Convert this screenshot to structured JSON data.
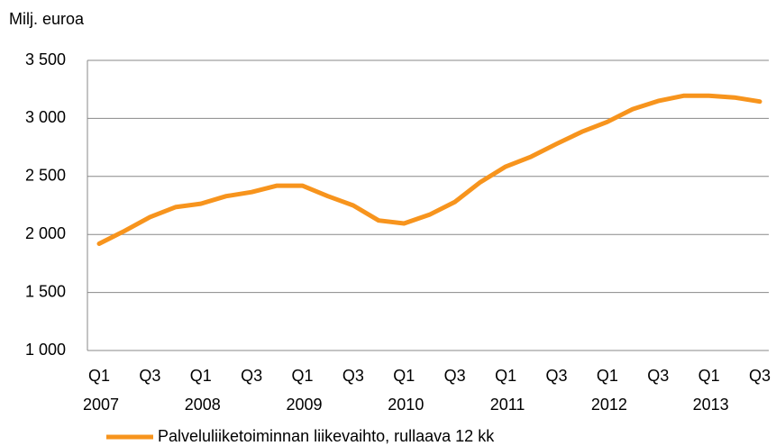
{
  "chart_data": {
    "type": "line",
    "y_axis_label": "Milj. euroa",
    "categories": [
      "Q1",
      null,
      "Q3",
      null,
      "Q1",
      null,
      "Q3",
      null,
      "Q1",
      null,
      "Q3",
      null,
      "Q1",
      null,
      "Q3",
      null,
      "Q1",
      null,
      "Q3",
      null,
      "Q1",
      null,
      "Q3",
      null,
      "Q1",
      null,
      "Q3"
    ],
    "years": [
      "2007",
      null,
      null,
      null,
      "2008",
      null,
      null,
      null,
      "2009",
      null,
      null,
      null,
      "2010",
      null,
      null,
      null,
      "2011",
      null,
      null,
      null,
      "2012",
      null,
      null,
      null,
      "2013",
      null,
      null
    ],
    "series": [
      {
        "name": "Palveluliiketoiminnan liikevaihto, rullaava 12 kk",
        "color": "#f7941d",
        "values": [
          1920,
          2030,
          2150,
          2235,
          2265,
          2330,
          2365,
          2420,
          2420,
          2330,
          2250,
          2120,
          2095,
          2170,
          2280,
          2450,
          2585,
          2670,
          2780,
          2885,
          2970,
          3080,
          3150,
          3195,
          3195,
          3180,
          3145
        ]
      }
    ],
    "ylim": [
      1000,
      3500
    ],
    "yticks": [
      {
        "value": 1000,
        "label": "1 000"
      },
      {
        "value": 1500,
        "label": "1 500"
      },
      {
        "value": 2000,
        "label": "2 000"
      },
      {
        "value": 2500,
        "label": "2 500"
      },
      {
        "value": 3000,
        "label": "3 000"
      },
      {
        "value": 3500,
        "label": "3 500"
      }
    ],
    "grid": true
  }
}
